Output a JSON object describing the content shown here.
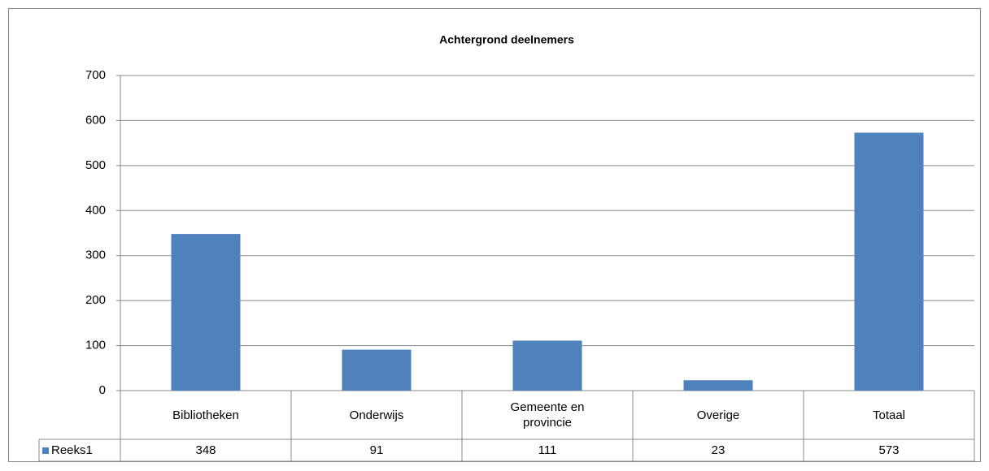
{
  "chart_data": {
    "type": "bar",
    "title": "Achtergrond deelnemers",
    "categories": [
      "Bibliotheken",
      "Onderwijs",
      "Gemeente en provincie",
      "Overige",
      "Totaal"
    ],
    "series": [
      {
        "name": "Reeks1",
        "color": "#4f81bd",
        "values": [
          348,
          91,
          111,
          23,
          573
        ]
      }
    ],
    "ylim": [
      0,
      700
    ],
    "yticks": [
      0,
      100,
      200,
      300,
      400,
      500,
      600,
      700
    ],
    "grid": true
  }
}
